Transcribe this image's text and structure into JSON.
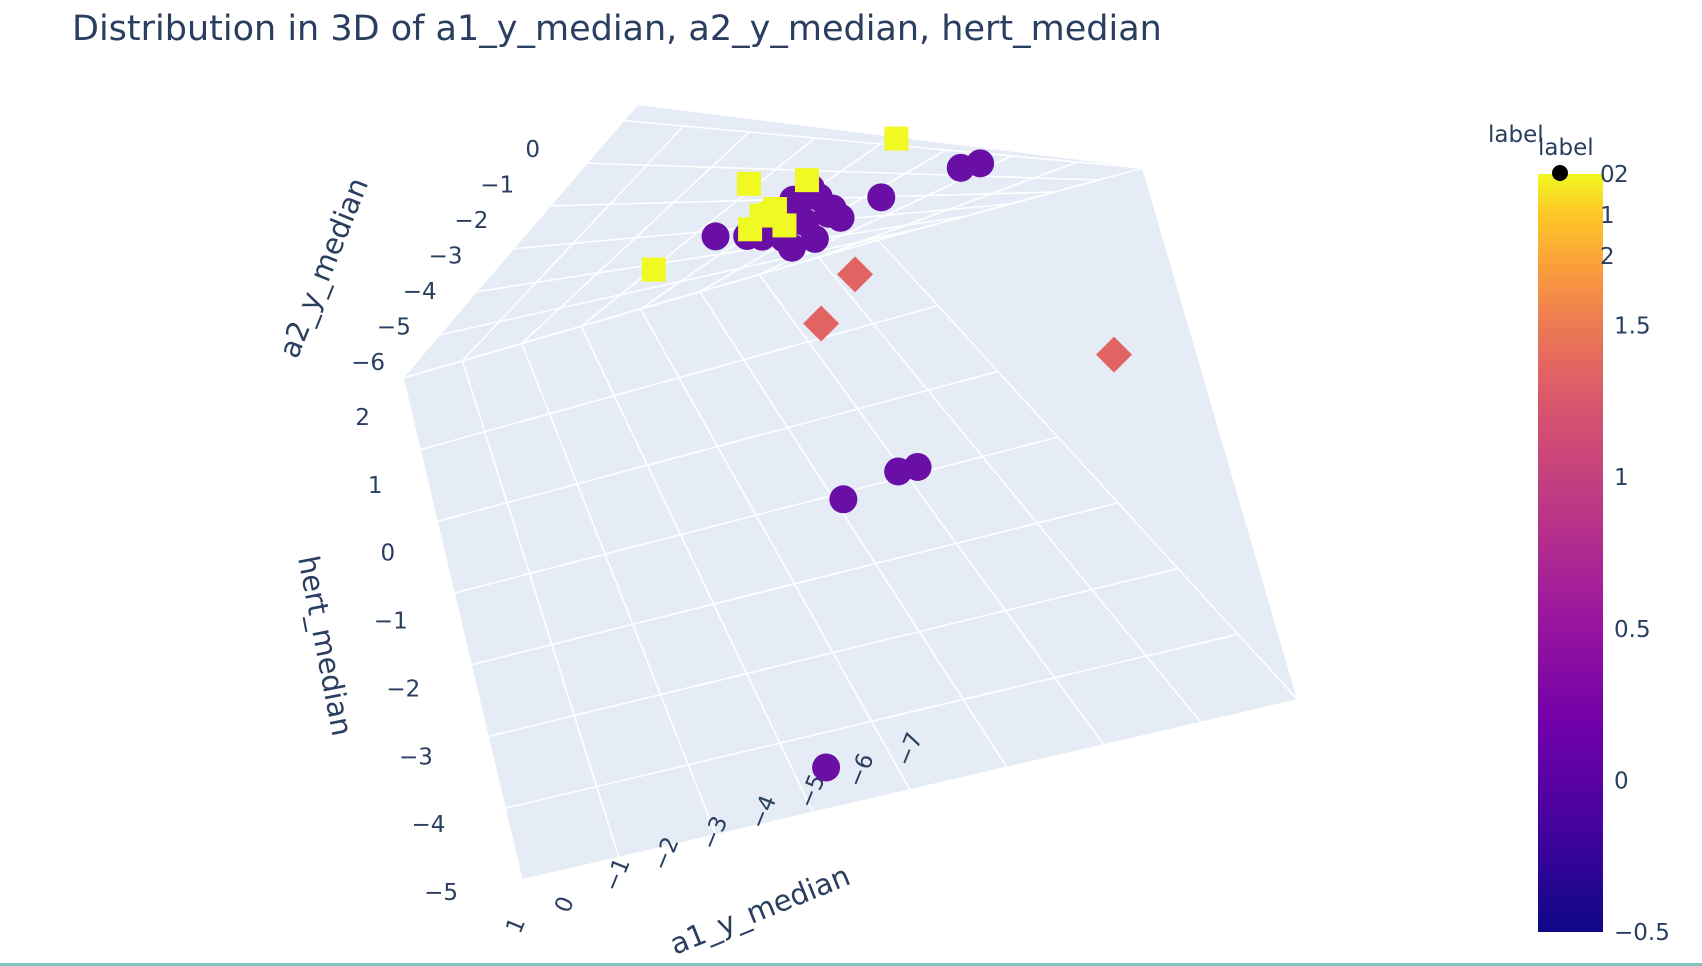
{
  "chart_data": {
    "type": "scatter",
    "subtype": "scatter3d",
    "title": "Distribution in 3D of a1_y_median, a2_y_median, hert_median",
    "axes": {
      "x": {
        "label": "a1_y_median",
        "ticks": [
          "1",
          "0",
          "−1",
          "−2",
          "−3",
          "−4",
          "−5",
          "−6",
          "−7"
        ],
        "range": [
          1,
          -7
        ]
      },
      "y": {
        "label": "a2_y_median",
        "ticks": [
          "0",
          "−1",
          "−2",
          "−3",
          "−4",
          "−5",
          "−6"
        ],
        "range": [
          0,
          -6
        ]
      },
      "z": {
        "label": "hert_median",
        "ticks": [
          "2",
          "1",
          "0",
          "−1",
          "−2",
          "−3",
          "−4",
          "−5"
        ],
        "range": [
          -5,
          2
        ]
      }
    },
    "legend": {
      "title": "label",
      "title_overlap": "label",
      "entries": [
        "0",
        "1",
        "2"
      ],
      "position": "top-right"
    },
    "colorbar": {
      "title": "label",
      "ticks": [
        "2",
        "1.5",
        "1",
        "0.5",
        "0",
        "−0.5"
      ],
      "range": [
        -0.5,
        2
      ],
      "colorscale": "plasma"
    },
    "series": [
      {
        "label_value": 0,
        "symbol": "circle",
        "color": "#6a0fa5",
        "points": [
          {
            "x": -3.2,
            "y": -5.1,
            "z": 2.3
          },
          {
            "x": -3.3,
            "y": -5.2,
            "z": 2.2
          },
          {
            "x": -3.4,
            "y": -5.0,
            "z": 2.4
          },
          {
            "x": -3.1,
            "y": -5.3,
            "z": 2.1
          },
          {
            "x": -3.5,
            "y": -5.1,
            "z": 2.2
          },
          {
            "x": -3.0,
            "y": -5.2,
            "z": 2.3
          },
          {
            "x": -2.9,
            "y": -5.0,
            "z": 2.2
          },
          {
            "x": -3.6,
            "y": -5.2,
            "z": 2.3
          },
          {
            "x": -2.8,
            "y": -5.1,
            "z": 2.1
          },
          {
            "x": -3.7,
            "y": -5.3,
            "z": 2.2
          },
          {
            "x": -3.3,
            "y": -4.9,
            "z": 2.5
          },
          {
            "x": -3.2,
            "y": -5.4,
            "z": 2.0
          },
          {
            "x": -3.4,
            "y": -5.3,
            "z": 2.0
          },
          {
            "x": -3.1,
            "y": -4.9,
            "z": 2.4
          },
          {
            "x": -2.7,
            "y": -5.2,
            "z": 2.2
          },
          {
            "x": -4.1,
            "y": -5.2,
            "z": 2.3
          },
          {
            "x": -2.3,
            "y": -5.0,
            "z": 2.2
          },
          {
            "x": -4.9,
            "y": -5.1,
            "z": 2.4
          },
          {
            "x": -5.1,
            "y": -5.1,
            "z": 2.4
          },
          {
            "x": -3.3,
            "y": -5.8,
            "z": -1.3
          },
          {
            "x": -3.9,
            "y": -5.8,
            "z": -1.1
          },
          {
            "x": -4.1,
            "y": -5.8,
            "z": -1.1
          },
          {
            "x": -2.6,
            "y": -6.0,
            "z": -4.7
          }
        ]
      },
      {
        "label_value": 1,
        "symbol": "diamond",
        "color": "#e16462",
        "points": [
          {
            "x": -3.8,
            "y": -5.5,
            "z": 1.5
          },
          {
            "x": -3.4,
            "y": -5.6,
            "z": 1.0
          },
          {
            "x": -6.1,
            "y": -5.4,
            "z": -0.4
          }
        ]
      },
      {
        "label_value": 2,
        "symbol": "square",
        "color": "#f0f921",
        "points": [
          {
            "x": -0.5,
            "y": 0.0,
            "z": 0.5
          },
          {
            "x": -1.0,
            "y": -0.8,
            "z": 0.4
          },
          {
            "x": -1.3,
            "y": -0.5,
            "z": 0.6
          },
          {
            "x": -1.1,
            "y": -0.9,
            "z": 0.5
          },
          {
            "x": -1.2,
            "y": -1.0,
            "z": 0.3
          },
          {
            "x": -0.9,
            "y": -1.1,
            "z": 0.4
          },
          {
            "x": -1.0,
            "y": -1.0,
            "z": 0.5
          },
          {
            "x": -2.0,
            "y": 0.1,
            "z": 0.6
          },
          {
            "x": 0.0,
            "y": -1.4,
            "z": 0.3
          }
        ]
      }
    ]
  }
}
